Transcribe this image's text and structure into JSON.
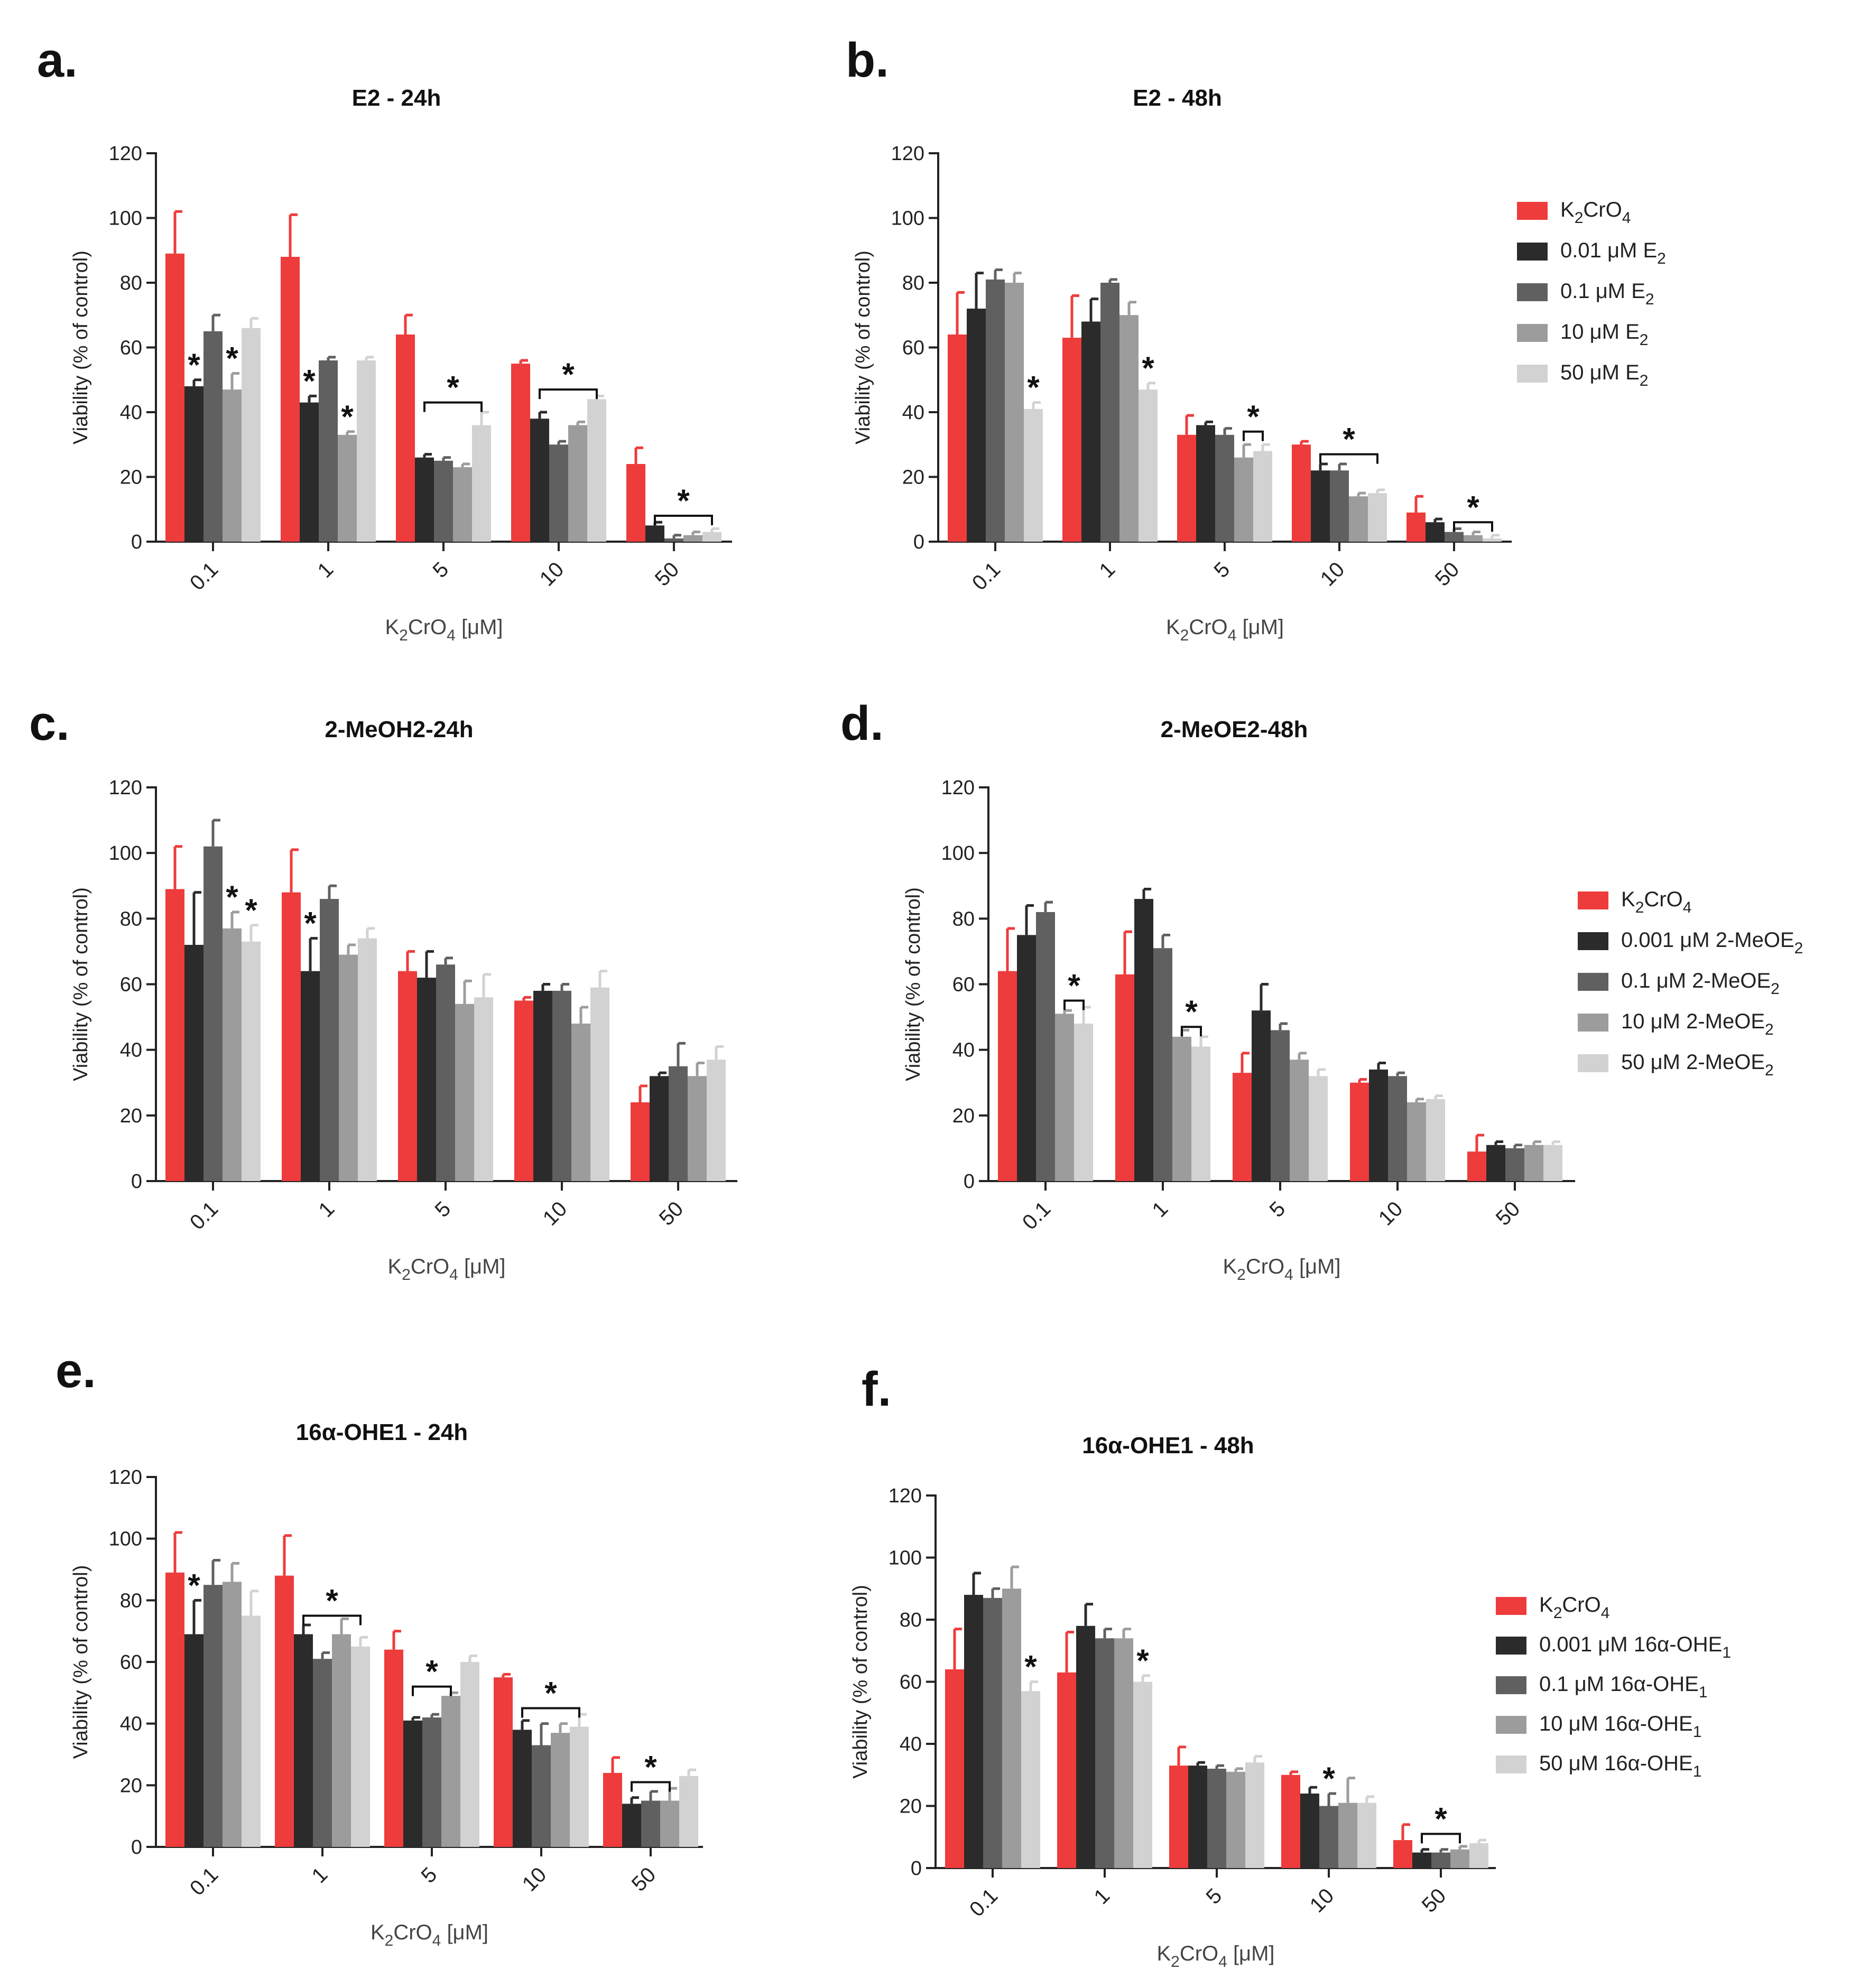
{
  "figure": {
    "colors": [
      "#ee3b3b",
      "#2b2b2b",
      "#606060",
      "#9c9c9c",
      "#d2d2d2"
    ]
  },
  "chart_data": [
    {
      "panel": "a.",
      "type": "bar",
      "title": "E2 - 24h",
      "xlabel": "K2CrO4 [μM]",
      "ylabel": "Viability (% of control)",
      "ylim": [
        0,
        120
      ],
      "yticks": [
        0,
        20,
        40,
        60,
        80,
        100,
        120
      ],
      "categories": [
        "0.1",
        "1",
        "5",
        "10",
        "50"
      ],
      "legend": [],
      "series": [
        {
          "name": "K2CrO4",
          "values": [
            89,
            88,
            64,
            55,
            24
          ],
          "err": [
            13,
            13,
            6,
            1,
            5
          ]
        },
        {
          "name": "0.01 μM E2",
          "values": [
            48,
            43,
            26,
            38,
            5
          ],
          "err": [
            2,
            2,
            1,
            2,
            1
          ]
        },
        {
          "name": "0.1 μM E2",
          "values": [
            65,
            56,
            25,
            30,
            1
          ],
          "err": [
            5,
            1,
            1,
            1,
            1
          ]
        },
        {
          "name": "10 μM E2",
          "values": [
            47,
            33,
            23,
            36,
            2
          ],
          "err": [
            5,
            1,
            1,
            1,
            1
          ]
        },
        {
          "name": "50 μM E2",
          "values": [
            66,
            56,
            36,
            44,
            3
          ],
          "err": [
            3,
            1,
            4,
            1,
            1
          ]
        }
      ],
      "stars": [
        {
          "type": "single",
          "cat": 0,
          "series": 1,
          "text": "*"
        },
        {
          "type": "single",
          "cat": 0,
          "series": 3,
          "text": "*"
        },
        {
          "type": "single",
          "cat": 1,
          "series": 1,
          "text": "*"
        },
        {
          "type": "single",
          "cat": 1,
          "series": 3,
          "text": "*"
        },
        {
          "type": "bracket",
          "cat": 2,
          "from": 1,
          "to": 4,
          "value": 43,
          "text": "*"
        },
        {
          "type": "bracket",
          "cat": 3,
          "from": 1,
          "to": 4,
          "value": 47,
          "text": "*"
        },
        {
          "type": "bracket",
          "cat": 4,
          "from": 1,
          "to": 4,
          "value": 8,
          "text": "*"
        }
      ]
    },
    {
      "panel": "b.",
      "type": "bar",
      "title": "E2 - 48h",
      "xlabel": "K2CrO4 [μM]",
      "ylabel": "Viability (% of control)",
      "ylim": [
        0,
        120
      ],
      "yticks": [
        0,
        20,
        40,
        60,
        80,
        100,
        120
      ],
      "categories": [
        "0.1",
        "1",
        "5",
        "10",
        "50"
      ],
      "legend": [
        "K2CrO4",
        "0.01 μM E2",
        "0.1 μM E2",
        "10 μM E2",
        "50 μM E2"
      ],
      "series": [
        {
          "name": "K2CrO4",
          "values": [
            64,
            63,
            33,
            30,
            9
          ],
          "err": [
            13,
            13,
            6,
            1,
            5
          ]
        },
        {
          "name": "0.01 μM E2",
          "values": [
            72,
            68,
            36,
            22,
            6
          ],
          "err": [
            11,
            7,
            1,
            2,
            1
          ]
        },
        {
          "name": "0.1 μM E2",
          "values": [
            81,
            80,
            33,
            22,
            3
          ],
          "err": [
            3,
            1,
            2,
            2,
            1
          ]
        },
        {
          "name": "10 μM E2",
          "values": [
            80,
            70,
            26,
            14,
            2
          ],
          "err": [
            3,
            4,
            4,
            1,
            1
          ]
        },
        {
          "name": "50 μM E2",
          "values": [
            41,
            47,
            28,
            15,
            1
          ],
          "err": [
            2,
            2,
            2,
            1,
            1
          ]
        }
      ],
      "stars": [
        {
          "type": "single",
          "cat": 0,
          "series": 4,
          "text": "*"
        },
        {
          "type": "single",
          "cat": 1,
          "series": 4,
          "text": "*"
        },
        {
          "type": "bracket",
          "cat": 2,
          "from": 3,
          "to": 4,
          "value": 34,
          "text": "*"
        },
        {
          "type": "bracket",
          "cat": 3,
          "from": 1,
          "to": 4,
          "value": 27,
          "text": "*"
        },
        {
          "type": "bracket",
          "cat": 4,
          "from": 2,
          "to": 4,
          "value": 6,
          "text": "*"
        }
      ]
    },
    {
      "panel": "c.",
      "type": "bar",
      "title": "2-MeOH2-24h",
      "xlabel": "K2CrO4 [μM]",
      "ylabel": "Viability (% of control)",
      "ylim": [
        0,
        120
      ],
      "yticks": [
        0,
        20,
        40,
        60,
        80,
        100,
        120
      ],
      "categories": [
        "0.1",
        "1",
        "5",
        "10",
        "50"
      ],
      "legend": [],
      "series": [
        {
          "name": "K2CrO4",
          "values": [
            89,
            88,
            64,
            55,
            24
          ],
          "err": [
            13,
            13,
            6,
            1,
            5
          ]
        },
        {
          "name": "0.001 μM 2-MeOE2",
          "values": [
            72,
            64,
            62,
            58,
            32
          ],
          "err": [
            16,
            10,
            8,
            2,
            1
          ]
        },
        {
          "name": "0.1 μM 2-MeOE2",
          "values": [
            102,
            86,
            66,
            58,
            35
          ],
          "err": [
            8,
            4,
            2,
            2,
            7
          ]
        },
        {
          "name": "10 μM 2-MeOE2",
          "values": [
            77,
            69,
            54,
            48,
            32
          ],
          "err": [
            5,
            3,
            7,
            5,
            4
          ]
        },
        {
          "name": "50 μM 2-MeOE2",
          "values": [
            73,
            74,
            56,
            59,
            37
          ],
          "err": [
            5,
            3,
            7,
            5,
            4
          ]
        }
      ],
      "stars": [
        {
          "type": "single",
          "cat": 0,
          "series": 3,
          "text": "*"
        },
        {
          "type": "single",
          "cat": 0,
          "series": 4,
          "text": "*"
        },
        {
          "type": "single",
          "cat": 1,
          "series": 1,
          "text": "*"
        }
      ]
    },
    {
      "panel": "d.",
      "type": "bar",
      "title": "2-MeOE2-48h",
      "xlabel": "K2CrO4 [μM]",
      "ylabel": "Viability (% of control)",
      "ylim": [
        0,
        120
      ],
      "yticks": [
        0,
        20,
        40,
        60,
        80,
        100,
        120
      ],
      "categories": [
        "0.1",
        "1",
        "5",
        "10",
        "50"
      ],
      "legend": [
        "K2CrO4",
        "0.001 μM 2-MeOE2",
        "0.1 μM 2-MeOE2",
        "10 μM 2-MeOE2",
        "50 μM 2-MeOE2"
      ],
      "series": [
        {
          "name": "K2CrO4",
          "values": [
            64,
            63,
            33,
            30,
            9
          ],
          "err": [
            13,
            13,
            6,
            1,
            5
          ]
        },
        {
          "name": "0.001 μM 2-MeOE2",
          "values": [
            75,
            86,
            52,
            34,
            11
          ],
          "err": [
            9,
            3,
            8,
            2,
            1
          ]
        },
        {
          "name": "0.1 μM 2-MeOE2",
          "values": [
            82,
            71,
            46,
            32,
            10
          ],
          "err": [
            3,
            4,
            2,
            1,
            1
          ]
        },
        {
          "name": "10 μM 2-MeOE2",
          "values": [
            51,
            44,
            37,
            24,
            11
          ],
          "err": [
            1,
            2,
            2,
            1,
            1
          ]
        },
        {
          "name": "50 μM 2-MeOE2",
          "values": [
            48,
            41,
            32,
            25,
            11
          ],
          "err": [
            5,
            3,
            2,
            1,
            1
          ]
        }
      ],
      "stars": [
        {
          "type": "bracket",
          "cat": 0,
          "from": 3,
          "to": 4,
          "value": 55,
          "text": "*"
        },
        {
          "type": "bracket",
          "cat": 1,
          "from": 3,
          "to": 4,
          "value": 47,
          "text": "*"
        }
      ]
    },
    {
      "panel": "e.",
      "type": "bar",
      "title": "16α-OHE1 - 24h",
      "xlabel": "K2CrO4 [μM]",
      "ylabel": "Viability (% of control)",
      "ylim": [
        0,
        120
      ],
      "yticks": [
        0,
        20,
        40,
        60,
        80,
        100,
        120
      ],
      "categories": [
        "0.1",
        "1",
        "5",
        "10",
        "50"
      ],
      "legend": [],
      "series": [
        {
          "name": "K2CrO4",
          "values": [
            89,
            88,
            64,
            55,
            24
          ],
          "err": [
            13,
            13,
            6,
            1,
            5
          ]
        },
        {
          "name": "0.001 μM 16α-OHE1",
          "values": [
            69,
            69,
            41,
            38,
            14
          ],
          "err": [
            11,
            3,
            1,
            3,
            2
          ]
        },
        {
          "name": "0.1 μM 16α-OHE1",
          "values": [
            85,
            61,
            42,
            33,
            15
          ],
          "err": [
            8,
            2,
            1,
            7,
            3
          ]
        },
        {
          "name": "10 μM 16α-OHE1",
          "values": [
            86,
            69,
            49,
            37,
            15
          ],
          "err": [
            6,
            5,
            1,
            3,
            4
          ]
        },
        {
          "name": "50 μM 16α-OHE1",
          "values": [
            75,
            65,
            60,
            39,
            23
          ],
          "err": [
            8,
            3,
            2,
            4,
            2
          ]
        }
      ],
      "stars": [
        {
          "type": "single",
          "cat": 0,
          "series": 1,
          "text": "*"
        },
        {
          "type": "bracket",
          "cat": 1,
          "from": 1,
          "to": 4,
          "value": 75,
          "text": "*"
        },
        {
          "type": "bracket",
          "cat": 2,
          "from": 1,
          "to": 3,
          "value": 52,
          "text": "*"
        },
        {
          "type": "bracket",
          "cat": 3,
          "from": 1,
          "to": 4,
          "value": 45,
          "text": "*"
        },
        {
          "type": "bracket",
          "cat": 4,
          "from": 1,
          "to": 3,
          "value": 21,
          "text": "*"
        }
      ]
    },
    {
      "panel": "f.",
      "type": "bar",
      "title": "16α-OHE1 - 48h",
      "xlabel": "K2CrO4 [μM]",
      "ylabel": "Viability (% of control)",
      "ylim": [
        0,
        120
      ],
      "yticks": [
        0,
        20,
        40,
        60,
        80,
        100,
        120
      ],
      "categories": [
        "0.1",
        "1",
        "5",
        "10",
        "50"
      ],
      "legend": [
        "K2CrO4",
        "0.001 μM 16α-OHE1",
        "0.1 μM 16α-OHE1",
        "10 μM 16α-OHE1",
        "50 μM 16α-OHE1"
      ],
      "series": [
        {
          "name": "K2CrO4",
          "values": [
            64,
            63,
            33,
            30,
            9
          ],
          "err": [
            13,
            13,
            6,
            1,
            5
          ]
        },
        {
          "name": "0.001 μM 16α-OHE1",
          "values": [
            88,
            78,
            33,
            24,
            5
          ],
          "err": [
            7,
            7,
            1,
            2,
            1
          ]
        },
        {
          "name": "0.1 μM 16α-OHE1",
          "values": [
            87,
            74,
            32,
            20,
            5
          ],
          "err": [
            3,
            3,
            1,
            4,
            1
          ]
        },
        {
          "name": "10 μM 16α-OHE1",
          "values": [
            90,
            74,
            31,
            21,
            6
          ],
          "err": [
            7,
            3,
            1,
            8,
            1
          ]
        },
        {
          "name": "50 μM 16α-OHE1",
          "values": [
            57,
            60,
            34,
            21,
            8
          ],
          "err": [
            3,
            2,
            2,
            2,
            1
          ]
        }
      ],
      "stars": [
        {
          "type": "single",
          "cat": 0,
          "series": 4,
          "text": "*"
        },
        {
          "type": "single",
          "cat": 1,
          "series": 4,
          "text": "*"
        },
        {
          "type": "single",
          "cat": 3,
          "series": 2,
          "text": "*"
        },
        {
          "type": "bracket",
          "cat": 4,
          "from": 1,
          "to": 3,
          "value": 11,
          "text": "*"
        }
      ]
    }
  ]
}
